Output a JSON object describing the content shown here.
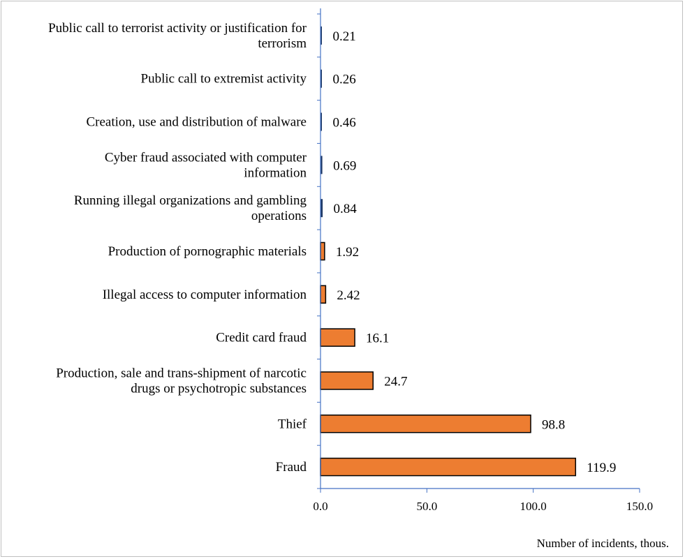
{
  "chart_data": {
    "type": "bar",
    "orientation": "horizontal",
    "categories": [
      [
        "Public call to terrorist activity or justification for",
        "terrorism"
      ],
      [
        "Public call to extremist activity"
      ],
      [
        "Creation, use and distribution of malware"
      ],
      [
        "Cyber fraud associated with computer",
        "information"
      ],
      [
        "Running illegal organizations and gambling",
        "operations"
      ],
      [
        "Production of pornographic materials"
      ],
      [
        "Illegal access to computer information"
      ],
      [
        "Credit card fraud"
      ],
      [
        "Production, sale and trans-shipment of narcotic",
        "drugs or psychotropic substances"
      ],
      [
        "Thief"
      ],
      [
        "Fraud"
      ]
    ],
    "values": [
      0.21,
      0.26,
      0.46,
      0.69,
      0.84,
      1.92,
      2.42,
      16.1,
      24.7,
      98.8,
      119.9
    ],
    "value_labels": [
      "0.21",
      "0.26",
      "0.46",
      "0.69",
      "0.84",
      "1.92",
      "2.42",
      "16.1",
      "24.7",
      "98.8",
      "119.9"
    ],
    "bar_colors": [
      "#1f3864",
      "#1f3864",
      "#1f3864",
      "#1f3864",
      "#1f3864",
      "#ed7d31",
      "#ed7d31",
      "#ed7d31",
      "#ed7d31",
      "#ed7d31",
      "#ed7d31"
    ],
    "xlim": [
      0,
      150
    ],
    "xticks": [
      0,
      50,
      100,
      150
    ],
    "xtick_labels": [
      "0.0",
      "50.0",
      "100.0",
      "150.0"
    ],
    "xlabel": "Number of incidents, thous.",
    "ylabel": "",
    "title": "",
    "grid": false,
    "legend": "none",
    "axis_color": "#4472c4"
  }
}
